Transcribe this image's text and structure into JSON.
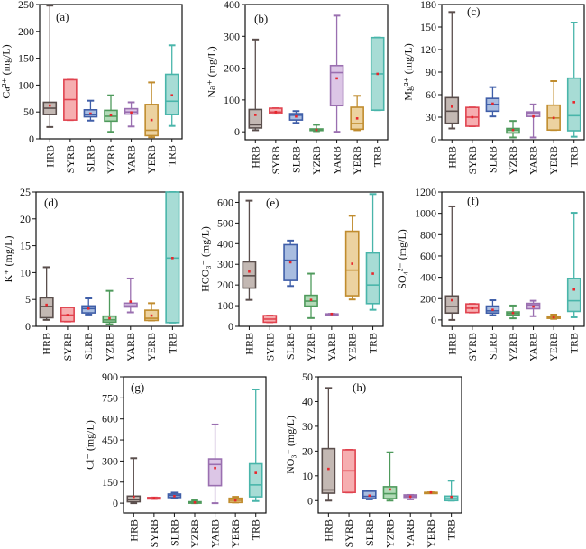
{
  "colors": {
    "HRB": {
      "stroke": "#5a4e4c",
      "fill": "#c3b8b3"
    },
    "SYRB": {
      "stroke": "#e0434f",
      "fill": "#f6aeb0"
    },
    "SLRB": {
      "stroke": "#3f5ea8",
      "fill": "#a9bde0"
    },
    "YZRB": {
      "stroke": "#4f9a5c",
      "fill": "#b2dab7"
    },
    "YARB": {
      "stroke": "#9a6fb0",
      "fill": "#dcc6e6"
    },
    "YERB": {
      "stroke": "#c08c2e",
      "fill": "#ecd2a0"
    },
    "TRB": {
      "stroke": "#49b5aa",
      "fill": "#a7dcd5"
    },
    "mean": "#e8262c"
  },
  "chart_data": [
    {
      "id": "a",
      "type": "box",
      "tag": "(a)",
      "ylabel": "Ca²⁺ (mg/L)",
      "ylim": [
        0,
        250
      ],
      "yticks": [
        0,
        50,
        100,
        150,
        200,
        250
      ],
      "categories": [
        "HRB",
        "SYRB",
        "SLRB",
        "YZRB",
        "YARB",
        "YERB",
        "TRB"
      ],
      "boxes": [
        {
          "min": 22,
          "q1": 45,
          "median": 57,
          "q3": 68,
          "max": 248,
          "mean": 62
        },
        {
          "min": 35,
          "q1": 35,
          "median": 73,
          "q3": 110,
          "max": 110,
          "mean": null
        },
        {
          "min": 34,
          "q1": 41,
          "median": 45,
          "q3": 54,
          "max": 71,
          "mean": 47
        },
        {
          "min": 13,
          "q1": 33,
          "median": 42,
          "q3": 53,
          "max": 81,
          "mean": 44
        },
        {
          "min": 23,
          "q1": 46,
          "median": 50,
          "q3": 56,
          "max": 68,
          "mean": 49
        },
        {
          "min": 3,
          "q1": 6,
          "median": 16,
          "q3": 64,
          "max": 105,
          "mean": 35
        },
        {
          "min": 24,
          "q1": 45,
          "median": 70,
          "q3": 120,
          "max": 174,
          "mean": 81
        }
      ]
    },
    {
      "id": "b",
      "type": "box",
      "tag": "(b)",
      "ylabel": "Na⁺ (mg/L)",
      "ylim": [
        -25,
        400
      ],
      "yticks": [
        0,
        100,
        200,
        300,
        400
      ],
      "categories": [
        "HRB",
        "SYRB",
        "SLRB",
        "YZRB",
        "YARB",
        "YERB",
        "TRB"
      ],
      "boxes": [
        {
          "min": 5,
          "q1": 12,
          "median": 22,
          "q3": 70,
          "max": 290,
          "mean": 53
        },
        {
          "min": 57,
          "q1": 57,
          "median": 62,
          "q3": 74,
          "max": 74,
          "mean": 62
        },
        {
          "min": 28,
          "q1": 37,
          "median": 52,
          "q3": 57,
          "max": 65,
          "mean": 48
        },
        {
          "min": 2,
          "q1": 4,
          "median": 6,
          "q3": 9,
          "max": 22,
          "mean": 6
        },
        {
          "min": 0,
          "q1": 82,
          "median": 186,
          "q3": 208,
          "max": 365,
          "mean": 168
        },
        {
          "min": 5,
          "q1": 8,
          "median": 26,
          "q3": 77,
          "max": 113,
          "mean": 42
        },
        {
          "min": 68,
          "q1": 68,
          "median": 182,
          "q3": 296,
          "max": 296,
          "mean": 182
        }
      ]
    },
    {
      "id": "c",
      "type": "box",
      "tag": "(c)",
      "ylabel": "Mg²⁺ (mg/L)",
      "ylim": [
        0,
        180
      ],
      "yticks": [
        0,
        30,
        60,
        90,
        120,
        150,
        180
      ],
      "categories": [
        "HRB",
        "SYRB",
        "SLRB",
        "YZRB",
        "YARB",
        "YERB",
        "TRB"
      ],
      "boxes": [
        {
          "min": 15,
          "q1": 22,
          "median": 38,
          "q3": 56,
          "max": 170,
          "mean": 44
        },
        {
          "min": 18,
          "q1": 18,
          "median": 30,
          "q3": 43,
          "max": 43,
          "mean": 30
        },
        {
          "min": 31,
          "q1": 38,
          "median": 47,
          "q3": 55,
          "max": 70,
          "mean": 48
        },
        {
          "min": 3,
          "q1": 9,
          "median": 13,
          "q3": 15,
          "max": 25,
          "mean": 13
        },
        {
          "min": 3,
          "q1": 31,
          "median": 35,
          "q3": 37,
          "max": 47,
          "mean": 31
        },
        {
          "min": 13,
          "q1": 13,
          "median": 29,
          "q3": 46,
          "max": 78,
          "mean": 29
        },
        {
          "min": 4,
          "q1": 12,
          "median": 32,
          "q3": 82,
          "max": 156,
          "mean": 50
        }
      ]
    },
    {
      "id": "d",
      "type": "box",
      "tag": "(d)",
      "ylabel": "K⁺ (mg/L)",
      "ylim": [
        0,
        25
      ],
      "yticks": [
        0,
        5,
        10,
        15,
        20,
        25
      ],
      "categories": [
        "HRB",
        "SYRB",
        "SLRB",
        "YZRB",
        "YARB",
        "YERB",
        "TRB"
      ],
      "boxes": [
        {
          "min": 1.2,
          "q1": 1.6,
          "median": 3.7,
          "q3": 5.3,
          "max": 11,
          "mean": 4.0
        },
        {
          "min": 0.9,
          "q1": 0.9,
          "median": 2.1,
          "q3": 3.5,
          "max": 3.5,
          "mean": 2.1
        },
        {
          "min": 2.2,
          "q1": 2.5,
          "median": 3.3,
          "q3": 3.8,
          "max": 5.2,
          "mean": 3.3
        },
        {
          "min": 0.4,
          "q1": 0.8,
          "median": 1.2,
          "q3": 1.9,
          "max": 6.6,
          "mean": 1.5
        },
        {
          "min": 2.6,
          "q1": 3.6,
          "median": 3.8,
          "q3": 4.3,
          "max": 8.9,
          "mean": 4.6
        },
        {
          "min": 1.1,
          "q1": 1.1,
          "median": 1.5,
          "q3": 3.0,
          "max": 4.3,
          "mean": 2.0
        },
        {
          "min": 0.7,
          "q1": 0.7,
          "median": 12.7,
          "q3": 25,
          "max": 25,
          "mean": 12.7
        }
      ]
    },
    {
      "id": "e",
      "type": "box",
      "tag": "(e)",
      "ylabel": "HCO₃⁻ (mg/L)",
      "ylim": [
        0,
        650
      ],
      "yticks": [
        0,
        100,
        200,
        300,
        400,
        500,
        600
      ],
      "categories": [
        "HRB",
        "SYRB",
        "SLRB",
        "YZRB",
        "YARB",
        "YERB",
        "TRB"
      ],
      "boxes": [
        {
          "min": 128,
          "q1": 185,
          "median": 245,
          "q3": 312,
          "max": 608,
          "mean": 265
        },
        {
          "min": 20,
          "q1": 20,
          "median": 35,
          "q3": 52,
          "max": 52,
          "mean": null
        },
        {
          "min": 195,
          "q1": 222,
          "median": 320,
          "q3": 395,
          "max": 415,
          "mean": 310
        },
        {
          "min": 40,
          "q1": 98,
          "median": 122,
          "q3": 150,
          "max": 255,
          "mean": 128
        },
        {
          "min": 60,
          "q1": 60,
          "median": 60,
          "q3": 60,
          "max": 60,
          "mean": 60
        },
        {
          "min": 130,
          "q1": 148,
          "median": 272,
          "q3": 460,
          "max": 535,
          "mean": 303
        },
        {
          "min": 80,
          "q1": 110,
          "median": 200,
          "q3": 355,
          "max": 640,
          "mean": 255
        }
      ]
    },
    {
      "id": "f",
      "type": "box",
      "tag": "(f)",
      "ylabel": "SO₄²⁻ (mg/L)",
      "ylim": [
        -60,
        1200
      ],
      "yticks": [
        0,
        200,
        400,
        600,
        800,
        1000,
        1200
      ],
      "categories": [
        "HRB",
        "SYRB",
        "SLRB",
        "YZRB",
        "YARB",
        "YERB",
        "TRB"
      ],
      "boxes": [
        {
          "min": 0,
          "q1": 65,
          "median": 125,
          "q3": 225,
          "max": 1065,
          "mean": 185
        },
        {
          "min": 70,
          "q1": 70,
          "median": 110,
          "q3": 150,
          "max": 150,
          "mean": 110
        },
        {
          "min": 45,
          "q1": 65,
          "median": 85,
          "q3": 130,
          "max": 185,
          "mean": 95
        },
        {
          "min": 15,
          "q1": 45,
          "median": 60,
          "q3": 75,
          "max": 135,
          "mean": 65
        },
        {
          "min": 35,
          "q1": 105,
          "median": 140,
          "q3": 155,
          "max": 180,
          "mean": 125
        },
        {
          "min": 10,
          "q1": 15,
          "median": 25,
          "q3": 35,
          "max": 50,
          "mean": 25
        },
        {
          "min": 25,
          "q1": 80,
          "median": 180,
          "q3": 390,
          "max": 1005,
          "mean": 285
        }
      ]
    },
    {
      "id": "g",
      "type": "box",
      "tag": "(g)",
      "ylabel": "Cl⁻ (mg/L)",
      "ylim": [
        -70,
        900
      ],
      "yticks": [
        0,
        150,
        300,
        450,
        600,
        750,
        900
      ],
      "categories": [
        "HRB",
        "SYRB",
        "SLRB",
        "YZRB",
        "YARB",
        "YERB",
        "TRB"
      ],
      "boxes": [
        {
          "min": 0,
          "q1": 10,
          "median": 25,
          "q3": 50,
          "max": 320,
          "mean": 45
        },
        {
          "min": 30,
          "q1": 30,
          "median": 35,
          "q3": 40,
          "max": 40,
          "mean": 35
        },
        {
          "min": 35,
          "q1": 40,
          "median": 55,
          "q3": 65,
          "max": 75,
          "mean": 50
        },
        {
          "min": 0,
          "q1": 0,
          "median": 5,
          "q3": 10,
          "max": 20,
          "mean": 5
        },
        {
          "min": 0,
          "q1": 125,
          "median": 275,
          "q3": 315,
          "max": 560,
          "mean": 250
        },
        {
          "min": 5,
          "q1": 5,
          "median": 20,
          "q3": 35,
          "max": 45,
          "mean": 20
        },
        {
          "min": 15,
          "q1": 45,
          "median": 130,
          "q3": 280,
          "max": 810,
          "mean": 215
        }
      ]
    },
    {
      "id": "h",
      "type": "box",
      "tag": "(h)",
      "ylabel": "NO₃⁻ (mg/L)",
      "ylim": [
        -5,
        50
      ],
      "yticks": [
        0,
        10,
        20,
        30,
        40,
        50
      ],
      "categories": [
        "HRB",
        "SYRB",
        "SLRB",
        "YZRB",
        "YARB",
        "YERB",
        "TRB"
      ],
      "boxes": [
        {
          "min": 0,
          "q1": 3,
          "median": 4.3,
          "q3": 21,
          "max": 45.5,
          "mean": 12.8
        },
        {
          "min": 3.3,
          "q1": 3.3,
          "median": 12,
          "q3": 20.5,
          "max": 20.5,
          "mean": null
        },
        {
          "min": 0.5,
          "q1": 0.8,
          "median": 1.7,
          "q3": 3.8,
          "max": 3.8,
          "mean": 2.0
        },
        {
          "min": 0,
          "q1": 0.8,
          "median": 2.8,
          "q3": 5.6,
          "max": 19.5,
          "mean": 4.5
        },
        {
          "min": 0.5,
          "q1": 1.3,
          "median": 1.8,
          "q3": 2.3,
          "max": 2.3,
          "mean": 1.6
        },
        {
          "min": 3.3,
          "q1": 3.3,
          "median": 3.3,
          "q3": 3.3,
          "max": 3.3,
          "mean": 3.3
        },
        {
          "min": 0,
          "q1": 0,
          "median": 0.8,
          "q3": 1.8,
          "max": 8,
          "mean": 1.5
        }
      ]
    }
  ]
}
